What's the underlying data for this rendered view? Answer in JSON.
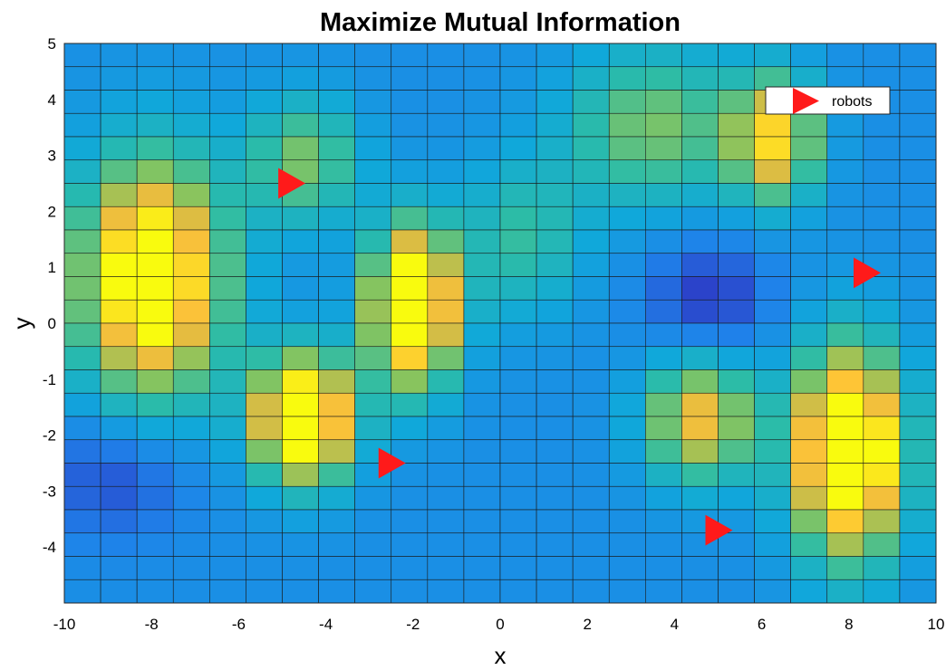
{
  "chart_data": {
    "type": "heatmap",
    "title": "Maximize Mutual Information",
    "xlabel": "x",
    "ylabel": "y",
    "xlim": [
      -10,
      10
    ],
    "ylim": [
      -5,
      5
    ],
    "x_ticks": [
      "-10",
      "-8",
      "-6",
      "-4",
      "-2",
      "0",
      "2",
      "4",
      "6",
      "8",
      "10"
    ],
    "y_ticks": [
      "5",
      "4",
      "3",
      "2",
      "1",
      "0",
      "-1",
      "-2",
      "-3",
      "-4"
    ],
    "grid": {
      "cols": 24,
      "rows": 24
    },
    "colormap": "parula",
    "peaks": [
      {
        "x": -8.0,
        "y": 0.8,
        "amp": 0.88,
        "sx": 1.2,
        "sy": 1.5
      },
      {
        "x": -4.5,
        "y": 2.9,
        "amp": 0.38,
        "sx": 0.9,
        "sy": 0.8
      },
      {
        "x": -4.5,
        "y": -1.7,
        "amp": 0.95,
        "sx": 0.8,
        "sy": 0.8
      },
      {
        "x": -2.0,
        "y": 0.3,
        "amp": 0.98,
        "sx": 0.7,
        "sy": 1.0
      },
      {
        "x": 0.5,
        "y": 1.5,
        "amp": 0.26,
        "sx": 1.0,
        "sy": 1.0
      },
      {
        "x": 3.5,
        "y": 3.5,
        "amp": 0.38,
        "sx": 1.4,
        "sy": 1.0
      },
      {
        "x": 6.3,
        "y": 3.3,
        "amp": 0.62,
        "sx": 0.7,
        "sy": 0.8
      },
      {
        "x": 4.6,
        "y": -1.7,
        "amp": 0.58,
        "sx": 0.9,
        "sy": 0.8
      },
      {
        "x": 8.0,
        "y": -2.3,
        "amp": 1.0,
        "sx": 0.9,
        "sy": 1.3
      },
      {
        "x": 4.8,
        "y": 0.4,
        "amp": -0.2,
        "sx": 1.0,
        "sy": 0.8
      },
      {
        "x": -8.8,
        "y": -2.7,
        "amp": -0.17,
        "sx": 1.2,
        "sy": 0.8
      }
    ],
    "base_level": 0.3,
    "series": [
      {
        "name": "robots",
        "marker": "right-triangle",
        "color": "#ff1a1a",
        "points": [
          {
            "x": -4.8,
            "y": 2.5
          },
          {
            "x": -2.5,
            "y": -2.5
          },
          {
            "x": 5.0,
            "y": -3.7
          },
          {
            "x": 8.4,
            "y": 0.9
          }
        ]
      }
    ],
    "legend": {
      "position": "top-right",
      "entries": [
        "robots"
      ]
    }
  }
}
